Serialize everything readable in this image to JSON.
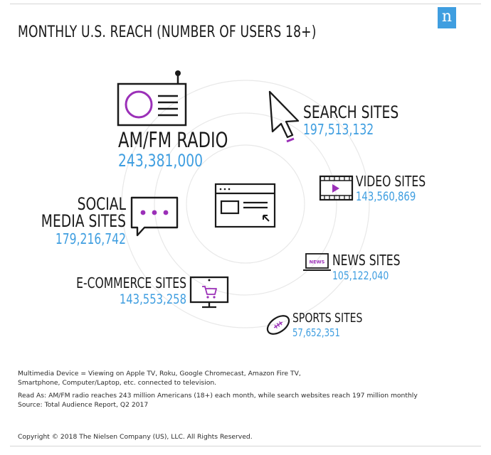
{
  "title": "MONTHLY U.S. REACH (NUMBER OF USERS 18+)",
  "logo": {
    "letter": "n",
    "color": "#3f9ee0",
    "icon": "nielsen-logo"
  },
  "colors": {
    "value": "#3f9ee0",
    "accent": "#9b30b8",
    "text": "#1a1a1a",
    "rings": "#e8e8e8"
  },
  "chart_data": {
    "type": "table",
    "title": "MONTHLY U.S. REACH (NUMBER OF USERS 18+)",
    "unit": "users 18+",
    "categories": [
      {
        "label": "AM/FM RADIO",
        "value_text": "243,381,000",
        "value": 243381000,
        "icon": "radio-icon"
      },
      {
        "label": "SEARCH SITES",
        "value_text": "197,513,132",
        "value": 197513132,
        "icon": "cursor-arrow-icon"
      },
      {
        "label": "SOCIAL MEDIA SITES",
        "label_lines": [
          "SOCIAL",
          "MEDIA SITES"
        ],
        "value_text": "179,216,742",
        "value": 179216742,
        "icon": "chat-bubble-icon"
      },
      {
        "label": "VIDEO SITES",
        "value_text": "143,560,869",
        "value": 143560869,
        "icon": "video-film-icon"
      },
      {
        "label": "E-COMMERCE SITES",
        "value_text": "143,553,258",
        "value": 143553258,
        "icon": "shopping-cart-monitor-icon"
      },
      {
        "label": "NEWS SITES",
        "value_text": "105,122,040",
        "value": 105122040,
        "icon": "news-laptop-icon",
        "icon_text": "NEWS"
      },
      {
        "label": "SPORTS SITES",
        "value_text": "57,652,351",
        "value": 57652351,
        "icon": "football-icon"
      }
    ],
    "center_icon": "browser-window-icon"
  },
  "notes": {
    "line1": "Multimedia Device = Viewing on Apple TV, Roku, Google Chromecast, Amazon Fire TV,",
    "line2": "Smartphone, Computer/Laptop, etc. connected to television.",
    "line3": "Read As: AM/FM radio reaches 243 million Americans (18+) each month, while search websites  reach 197 million monthly",
    "line4": "Source: Total Audience Report, Q2 2017"
  },
  "copyright": "Copyright © 2018 The Nielsen Company (US), LLC. All Rights Reserved."
}
